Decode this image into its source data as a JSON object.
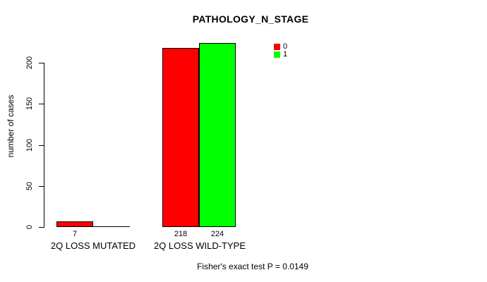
{
  "chart_data": {
    "type": "bar",
    "title": "PATHOLOGY_N_STAGE",
    "ylabel": "number of cases",
    "xlabel": "",
    "categories": [
      "2Q LOSS MUTATED",
      "2Q LOSS WILD-TYPE"
    ],
    "series": [
      {
        "name": "0",
        "color": "#ff0000",
        "values": [
          7,
          218
        ]
      },
      {
        "name": "1",
        "color": "#00ff00",
        "values": [
          0,
          224
        ]
      }
    ],
    "yticks": [
      0,
      50,
      100,
      150,
      200
    ],
    "ylim": [
      0,
      200
    ],
    "grid": false,
    "legend_position": "inside-top-right",
    "legend_labels": [
      "0",
      "1"
    ],
    "bar_value_labels_shown": [
      "7",
      "218",
      "224"
    ],
    "annotation": "Fisher's exact test P = 0.0149",
    "axis_color": "#000000",
    "background_color": "#ffffff"
  }
}
